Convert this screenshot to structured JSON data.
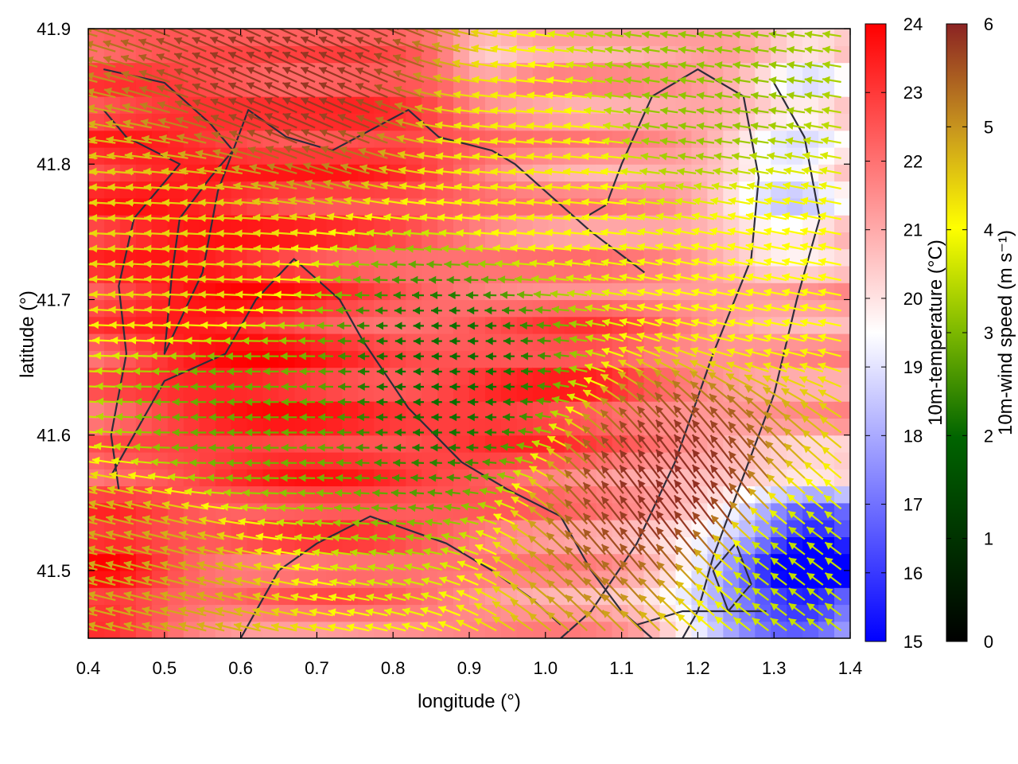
{
  "chart_data": {
    "type": "heatmap",
    "xlabel": "longitude (°)",
    "ylabel": "latitude (°)",
    "xlim": [
      0.4,
      1.4
    ],
    "ylim": [
      41.45,
      41.9
    ],
    "xticks": [
      "0.4",
      "0.5",
      "0.6",
      "0.7",
      "0.8",
      "0.9",
      "1.0",
      "1.1",
      "1.2",
      "1.3",
      "1.4"
    ],
    "yticks": [
      "41.5",
      "41.6",
      "41.7",
      "41.8",
      "41.9"
    ],
    "temperature_colorbar": {
      "label": "10m-temperature (°C)",
      "range": [
        15,
        24
      ],
      "ticks": [
        "15",
        "16",
        "17",
        "18",
        "19",
        "20",
        "21",
        "22",
        "23",
        "24"
      ],
      "colors": [
        "#0000ff",
        "#ffffff",
        "#ff0000"
      ]
    },
    "wind_colorbar": {
      "label": "10m-wind speed (m s⁻¹)",
      "range": [
        0,
        6
      ],
      "ticks": [
        "0",
        "1",
        "2",
        "3",
        "4",
        "5",
        "6"
      ],
      "colors": [
        "#000000",
        "#006400",
        "#7cb800",
        "#ffff00",
        "#c8961e",
        "#8b2323"
      ]
    },
    "grid": false,
    "temperature_centers": [
      {
        "lon": 0.48,
        "lat": 41.8,
        "t": 23.2,
        "s": 0.22
      },
      {
        "lon": 0.6,
        "lat": 41.65,
        "t": 23.0,
        "s": 0.18
      },
      {
        "lon": 0.8,
        "lat": 41.82,
        "t": 22.8,
        "s": 0.14
      },
      {
        "lon": 0.95,
        "lat": 41.62,
        "t": 22.8,
        "s": 0.12
      },
      {
        "lon": 0.75,
        "lat": 41.55,
        "t": 22.5,
        "s": 0.16
      },
      {
        "lon": 1.08,
        "lat": 41.65,
        "t": 22.5,
        "s": 0.1
      },
      {
        "lon": 0.42,
        "lat": 41.5,
        "t": 23.5,
        "s": 0.1
      },
      {
        "lon": 1.37,
        "lat": 41.51,
        "t": 16.0,
        "s": 0.08
      },
      {
        "lon": 1.28,
        "lat": 41.48,
        "t": 17.5,
        "s": 0.12
      },
      {
        "lon": 1.32,
        "lat": 41.78,
        "t": 18.8,
        "s": 0.09
      },
      {
        "lon": 1.35,
        "lat": 41.87,
        "t": 19.5,
        "s": 0.07
      },
      {
        "lon": 0.92,
        "lat": 41.88,
        "t": 20.2,
        "s": 0.05
      }
    ],
    "temperature_base": 21.3,
    "wind_regions": [
      {
        "lon": 0.55,
        "lat": 41.72,
        "speed": 4.1,
        "u": -1.0,
        "v": 0.05
      },
      {
        "lon": 0.6,
        "lat": 41.62,
        "speed": 2.2,
        "u": -1.0,
        "v": 0.0
      },
      {
        "lon": 0.87,
        "lat": 41.65,
        "speed": 1.3,
        "u": -1.0,
        "v": 0.0
      },
      {
        "lon": 0.7,
        "lat": 41.87,
        "speed": 5.8,
        "u": -0.9,
        "v": 0.4
      },
      {
        "lon": 1.0,
        "lat": 41.8,
        "speed": 3.8,
        "u": -1.0,
        "v": 0.1
      },
      {
        "lon": 1.2,
        "lat": 41.85,
        "speed": 2.6,
        "u": -1.0,
        "v": 0.15
      },
      {
        "lon": 1.2,
        "lat": 41.55,
        "speed": 5.9,
        "u": -0.6,
        "v": 0.8
      },
      {
        "lon": 1.3,
        "lat": 41.72,
        "speed": 3.6,
        "u": -1.0,
        "v": 0.2
      },
      {
        "lon": 1.33,
        "lat": 41.5,
        "speed": 3.0,
        "u": -0.8,
        "v": 0.6
      },
      {
        "lon": 0.48,
        "lat": 41.5,
        "speed": 4.6,
        "u": -1.0,
        "v": 0.25
      }
    ],
    "contours": [
      [
        [
          0.42,
          41.87
        ],
        [
          0.5,
          41.86
        ],
        [
          0.56,
          41.83
        ],
        [
          0.59,
          41.81
        ],
        [
          0.56,
          41.79
        ],
        [
          0.52,
          41.76
        ],
        [
          0.51,
          41.72
        ],
        [
          0.5,
          41.66
        ],
        [
          0.55,
          41.72
        ],
        [
          0.57,
          41.78
        ],
        [
          0.61,
          41.84
        ],
        [
          0.66,
          41.82
        ],
        [
          0.72,
          41.81
        ],
        [
          0.82,
          41.84
        ],
        [
          0.86,
          41.82
        ],
        [
          0.93,
          41.81
        ],
        [
          0.96,
          41.8
        ],
        [
          1.0,
          41.78
        ],
        [
          1.06,
          41.75
        ],
        [
          1.13,
          41.72
        ]
      ],
      [
        [
          0.42,
          41.84
        ],
        [
          0.45,
          41.82
        ],
        [
          0.52,
          41.8
        ],
        [
          0.46,
          41.76
        ],
        [
          0.44,
          41.71
        ],
        [
          0.45,
          41.66
        ],
        [
          0.43,
          41.6
        ],
        [
          0.44,
          41.56
        ]
      ],
      [
        [
          0.43,
          41.57
        ],
        [
          0.5,
          41.64
        ],
        [
          0.58,
          41.66
        ],
        [
          0.62,
          41.7
        ],
        [
          0.67,
          41.73
        ],
        [
          0.73,
          41.7
        ],
        [
          0.76,
          41.67
        ],
        [
          0.82,
          41.62
        ],
        [
          0.89,
          41.58
        ],
        [
          0.95,
          41.56
        ],
        [
          1.02,
          41.54
        ],
        [
          1.06,
          41.5
        ],
        [
          1.1,
          41.47
        ],
        [
          1.14,
          41.45
        ]
      ],
      [
        [
          0.6,
          41.45
        ],
        [
          0.65,
          41.5
        ],
        [
          0.7,
          41.52
        ],
        [
          0.77,
          41.54
        ],
        [
          0.82,
          41.53
        ],
        [
          0.87,
          41.52
        ],
        [
          0.93,
          41.5
        ],
        [
          0.98,
          41.48
        ],
        [
          1.02,
          41.46
        ]
      ],
      [
        [
          1.05,
          41.76
        ],
        [
          1.08,
          41.77
        ],
        [
          1.1,
          41.8
        ],
        [
          1.14,
          41.85
        ],
        [
          1.2,
          41.87
        ],
        [
          1.26,
          41.85
        ],
        [
          1.28,
          41.79
        ],
        [
          1.27,
          41.73
        ],
        [
          1.22,
          41.66
        ],
        [
          1.17,
          41.58
        ],
        [
          1.12,
          41.52
        ],
        [
          1.06,
          41.47
        ],
        [
          1.02,
          41.45
        ]
      ],
      [
        [
          1.3,
          41.86
        ],
        [
          1.34,
          41.82
        ],
        [
          1.36,
          41.76
        ],
        [
          1.33,
          41.7
        ],
        [
          1.3,
          41.63
        ],
        [
          1.26,
          41.57
        ],
        [
          1.22,
          41.51
        ],
        [
          1.2,
          41.47
        ],
        [
          1.18,
          41.45
        ]
      ],
      [
        [
          1.22,
          41.5
        ],
        [
          1.25,
          41.52
        ],
        [
          1.27,
          41.49
        ],
        [
          1.24,
          41.47
        ],
        [
          1.22,
          41.5
        ]
      ],
      [
        [
          1.12,
          41.46
        ],
        [
          1.18,
          41.47
        ],
        [
          1.24,
          41.47
        ],
        [
          1.29,
          41.47
        ]
      ]
    ]
  }
}
